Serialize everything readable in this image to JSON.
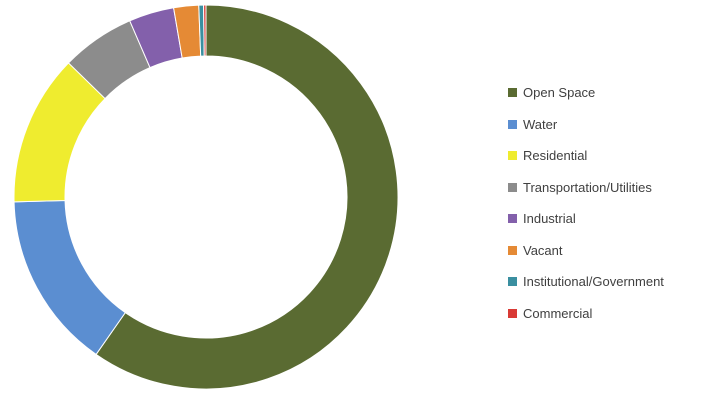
{
  "chart_data": {
    "type": "pie",
    "style": "donut",
    "title": "",
    "legend_position": "right",
    "categories": [
      "Open Space",
      "Water",
      "Residential",
      "Transportation/Utilities",
      "Industrial",
      "Vacant",
      "Institutional/Government",
      "Commercial"
    ],
    "values": [
      59.7,
      14.9,
      12.7,
      6.2,
      3.8,
      2.1,
      0.4,
      0.2
    ],
    "unit": "%",
    "colors": [
      "#5a6b32",
      "#5b8ed1",
      "#efec2f",
      "#8c8c8c",
      "#8360ab",
      "#e58a35",
      "#3a8fa0",
      "#d93a35"
    ]
  }
}
